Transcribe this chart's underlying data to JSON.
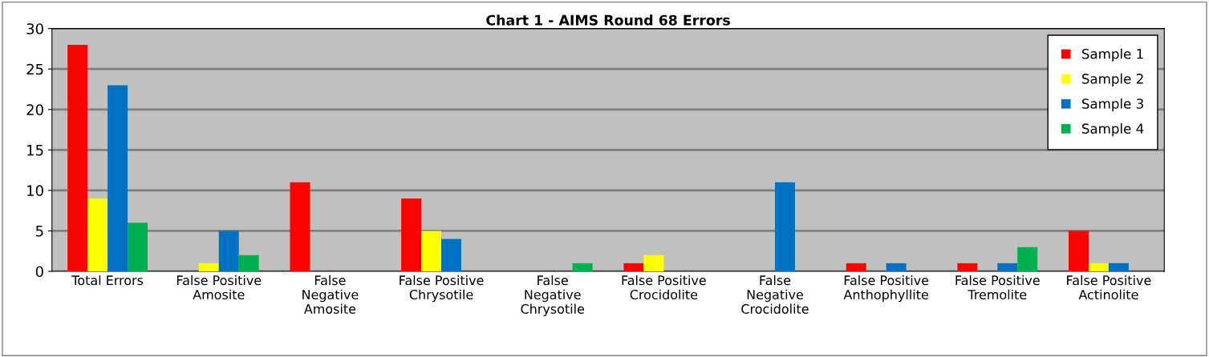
{
  "chart_data": {
    "type": "bar",
    "title": "Chart 1 - AIMS Round 68 Errors",
    "categories": [
      "Total Errors",
      "False Positive\nAmosite",
      "False\nNegative\nAmosite",
      "False Positive\nChrysotile",
      "False\nNegative\nChrysotile",
      "False Positive\nCrocidolite",
      "False\nNegative\nCrocidolite",
      "False Positive\nAnthophyllite",
      "False Positive\nTremolite",
      "False Positive\nActinolite"
    ],
    "series": [
      {
        "name": "Sample 1",
        "color": "#ff0000",
        "values": [
          28,
          0,
          11,
          9,
          0,
          1,
          0,
          1,
          1,
          5
        ]
      },
      {
        "name": "Sample 2",
        "color": "#ffff00",
        "values": [
          9,
          1,
          0,
          5,
          0,
          2,
          0,
          0,
          0,
          1
        ]
      },
      {
        "name": "Sample 3",
        "color": "#0070c0",
        "values": [
          23,
          5,
          0,
          4,
          0,
          0,
          11,
          1,
          1,
          1
        ]
      },
      {
        "name": "Sample 4",
        "color": "#00b050",
        "values": [
          6,
          2,
          0,
          0,
          1,
          0,
          0,
          0,
          3,
          0
        ]
      }
    ],
    "ylim": [
      0,
      30
    ],
    "yticks": [
      0,
      5,
      10,
      15,
      20,
      25,
      30
    ],
    "grid": "y",
    "legend": "top right"
  }
}
